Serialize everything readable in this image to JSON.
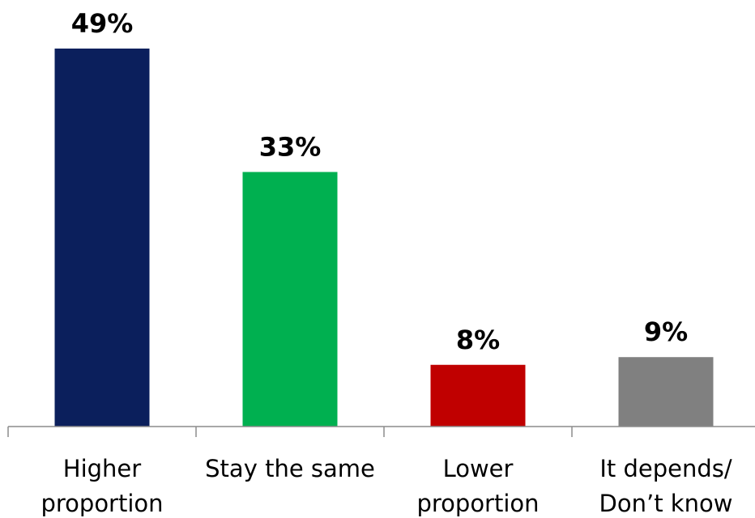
{
  "chart_data": {
    "type": "bar",
    "categories": [
      [
        "Higher",
        "proportion"
      ],
      [
        "Stay the same"
      ],
      [
        "Lower",
        "proportion"
      ],
      [
        "It depends/",
        "Don’t know"
      ]
    ],
    "values": [
      49,
      33,
      8,
      9
    ],
    "value_labels": [
      "49%",
      "33%",
      "8%",
      "9%"
    ],
    "colors": [
      "#0b1f5c",
      "#00b050",
      "#c00000",
      "#808080"
    ],
    "title": "",
    "xlabel": "",
    "ylabel": "",
    "ylim": [
      0,
      49
    ],
    "grid": false,
    "legend": "none"
  }
}
